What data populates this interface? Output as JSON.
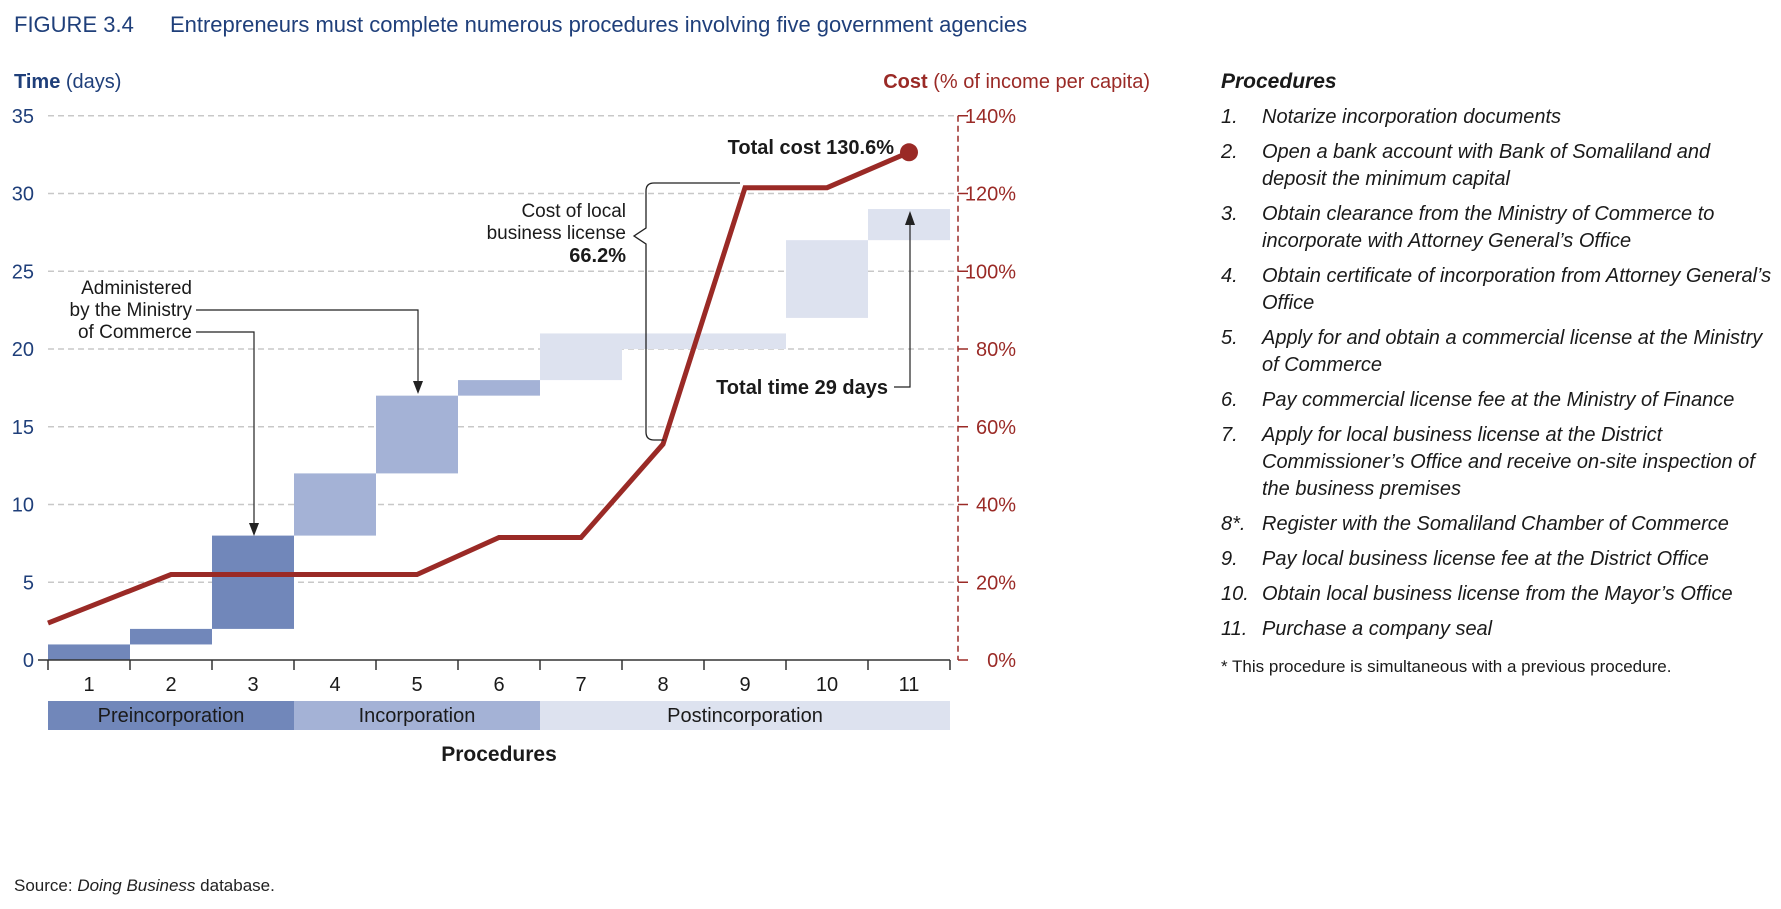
{
  "figure": {
    "number": "FIGURE 3.4",
    "title": "Entrepreneurs must complete numerous procedures involving five government agencies"
  },
  "axes": {
    "left_title_bold": "Time",
    "left_title_rest": " (days)",
    "right_title_bold": "Cost",
    "right_title_rest": " (% of income per capita)"
  },
  "chart_data": {
    "type": "bar",
    "description_free": true,
    "x_categories": [
      "1",
      "2",
      "3",
      "4",
      "5",
      "6",
      "7",
      "8",
      "9",
      "10",
      "11"
    ],
    "time_axis": {
      "ticks": [
        "0",
        "5",
        "10",
        "15",
        "20",
        "25",
        "30",
        "35"
      ],
      "range": [
        0,
        35
      ]
    },
    "cost_axis": {
      "ticks": [
        "0%",
        "20%",
        "40%",
        "60%",
        "80%",
        "100%",
        "120%",
        "140%"
      ],
      "range": [
        0,
        140
      ]
    },
    "time_bars": [
      {
        "procedure": 1,
        "start": 0,
        "end": 1,
        "phase": "pre"
      },
      {
        "procedure": 2,
        "start": 1,
        "end": 2,
        "phase": "pre"
      },
      {
        "procedure": 3,
        "start": 2,
        "end": 8,
        "phase": "pre"
      },
      {
        "procedure": 4,
        "start": 8,
        "end": 12,
        "phase": "inc"
      },
      {
        "procedure": 5,
        "start": 12,
        "end": 17,
        "phase": "inc"
      },
      {
        "procedure": 6,
        "start": 17,
        "end": 18,
        "phase": "inc"
      },
      {
        "procedure": 7,
        "start": 18,
        "end": 21,
        "phase": "post"
      },
      {
        "procedure": 8,
        "start": 20,
        "end": 21,
        "phase": "post"
      },
      {
        "procedure": 9,
        "start": 20,
        "end": 21,
        "phase": "post"
      },
      {
        "procedure": 10,
        "start": 22,
        "end": 27,
        "phase": "post"
      },
      {
        "procedure": 11,
        "start": 27,
        "end": 29,
        "phase": "post"
      }
    ],
    "cost_line": [
      {
        "x": 0.5,
        "y": 9.5
      },
      {
        "x": 2,
        "y": 22
      },
      {
        "x": 5,
        "y": 22
      },
      {
        "x": 6,
        "y": 31.5
      },
      {
        "x": 7,
        "y": 31.5
      },
      {
        "x": 8,
        "y": 55.5
      },
      {
        "x": 9,
        "y": 121.5
      },
      {
        "x": 10,
        "y": 121.5
      },
      {
        "x": 11,
        "y": 130.6
      }
    ],
    "phases": [
      {
        "label": "Preincorporation",
        "from": 1,
        "to": 3,
        "color": "#7187ba"
      },
      {
        "label": "Incorporation",
        "from": 4,
        "to": 6,
        "color": "#a4b2d6"
      },
      {
        "label": "Postincorporation",
        "from": 7,
        "to": 11,
        "color": "#dde2ef"
      }
    ],
    "xlabel": "Procedures",
    "grid": true,
    "colors": {
      "pre": "#7187ba",
      "inc": "#a4b2d6",
      "post": "#dde2ef",
      "cost_line": "#9a2a26",
      "grid": "#c8c8c8"
    }
  },
  "annotations": {
    "ministry": [
      "Administered",
      "by the Ministry",
      "of Commerce"
    ],
    "local_license": [
      "Cost of local",
      "business license"
    ],
    "local_license_value": "66.2%",
    "total_cost": "Total cost 130.6%",
    "total_time": "Total time 29 days"
  },
  "procedures": {
    "heading": "Procedures",
    "items": [
      {
        "num": "1.",
        "text": "Notarize incorporation documents"
      },
      {
        "num": "2.",
        "text": "Open a bank account with Bank of Somaliland and deposit the minimum capital"
      },
      {
        "num": "3.",
        "text": "Obtain clearance from the Ministry of Commerce to incorporate with Attorney General’s Office"
      },
      {
        "num": "4.",
        "text": "Obtain certificate of incorporation from Attorney General’s Office"
      },
      {
        "num": "5.",
        "text": "Apply for and obtain a commercial license at the Ministry of Commerce"
      },
      {
        "num": "6.",
        "text": "Pay commercial license fee at the Ministry of Finance"
      },
      {
        "num": "7.",
        "text": "Apply for local business license at the District Commissioner’s Office and receive on-site inspection of the business premises"
      },
      {
        "num": "8*.",
        "text": "Register with the Somaliland Chamber of Commerce"
      },
      {
        "num": "9.",
        "text": "Pay local business license fee at the District Office"
      },
      {
        "num": "10.",
        "text": "Obtain local business license from the Mayor’s Office"
      },
      {
        "num": "11.",
        "text": "Purchase a company seal"
      }
    ],
    "note": "* This procedure is simultaneous with a previous procedure."
  },
  "source": {
    "prefix": "Source: ",
    "italic": "Doing Business",
    "suffix": " database."
  }
}
